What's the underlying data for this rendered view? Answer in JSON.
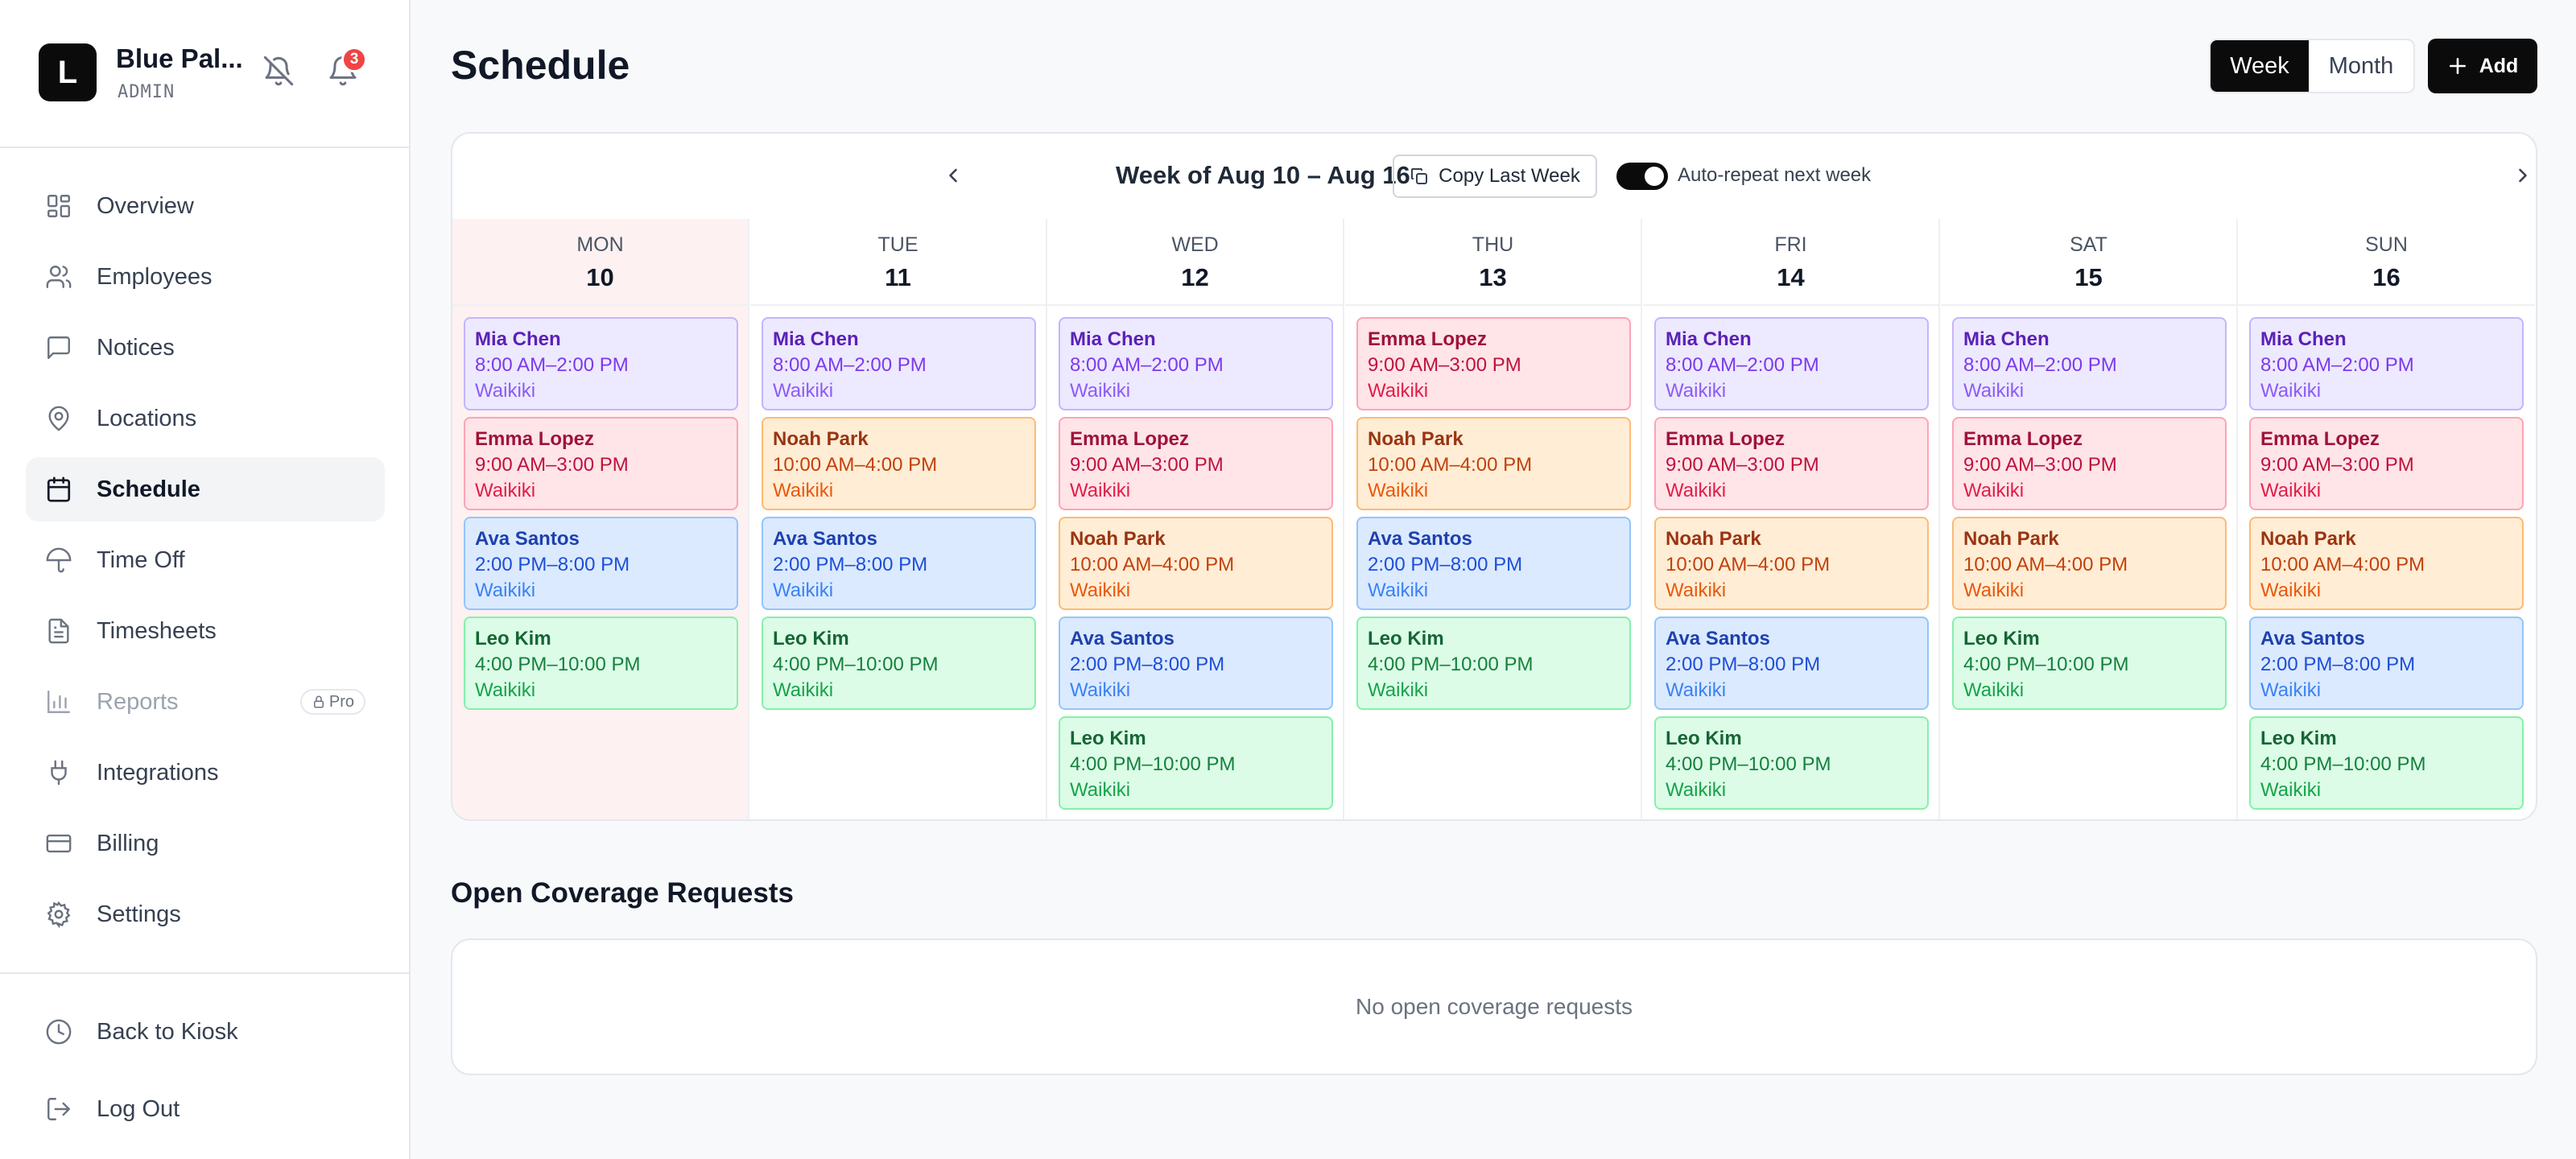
{
  "sidebar": {
    "brand_initial": "L",
    "brand_name": "Blue Pal...",
    "brand_role": "ADMIN",
    "notification_count": "3",
    "nav": [
      {
        "label": "Overview",
        "icon": "grid-icon"
      },
      {
        "label": "Employees",
        "icon": "users-icon"
      },
      {
        "label": "Notices",
        "icon": "message-icon"
      },
      {
        "label": "Locations",
        "icon": "map-pin-icon"
      },
      {
        "label": "Schedule",
        "icon": "calendar-icon",
        "active": true
      },
      {
        "label": "Time Off",
        "icon": "umbrella-icon"
      },
      {
        "label": "Timesheets",
        "icon": "document-icon"
      },
      {
        "label": "Reports",
        "icon": "bar-chart-icon",
        "disabled": true,
        "badge": "Pro"
      },
      {
        "label": "Integrations",
        "icon": "plug-icon"
      },
      {
        "label": "Billing",
        "icon": "credit-card-icon"
      },
      {
        "label": "Settings",
        "icon": "gear-icon"
      }
    ],
    "footer": [
      {
        "label": "Back to Kiosk",
        "icon": "clock-icon"
      },
      {
        "label": "Log Out",
        "icon": "logout-icon"
      }
    ]
  },
  "header": {
    "title": "Schedule",
    "view_week": "Week",
    "view_month": "Month",
    "add_label": "Add"
  },
  "week_bar": {
    "label": "Week of Aug 10 – Aug 16",
    "copy_label": "Copy Last Week",
    "auto_repeat_label": "Auto-repeat next week",
    "auto_repeat_on": true
  },
  "days": [
    {
      "name": "MON",
      "num": "10",
      "today": true,
      "shifts": [
        {
          "name": "Mia Chen",
          "time": "8:00 AM–2:00 PM",
          "location": "Waikiki",
          "color": "purple"
        },
        {
          "name": "Emma Lopez",
          "time": "9:00 AM–3:00 PM",
          "location": "Waikiki",
          "color": "pink"
        },
        {
          "name": "Ava Santos",
          "time": "2:00 PM–8:00 PM",
          "location": "Waikiki",
          "color": "blue"
        },
        {
          "name": "Leo Kim",
          "time": "4:00 PM–10:00 PM",
          "location": "Waikiki",
          "color": "green"
        }
      ]
    },
    {
      "name": "TUE",
      "num": "11",
      "shifts": [
        {
          "name": "Mia Chen",
          "time": "8:00 AM–2:00 PM",
          "location": "Waikiki",
          "color": "purple"
        },
        {
          "name": "Noah Park",
          "time": "10:00 AM–4:00 PM",
          "location": "Waikiki",
          "color": "orange"
        },
        {
          "name": "Ava Santos",
          "time": "2:00 PM–8:00 PM",
          "location": "Waikiki",
          "color": "blue"
        },
        {
          "name": "Leo Kim",
          "time": "4:00 PM–10:00 PM",
          "location": "Waikiki",
          "color": "green"
        }
      ]
    },
    {
      "name": "WED",
      "num": "12",
      "shifts": [
        {
          "name": "Mia Chen",
          "time": "8:00 AM–2:00 PM",
          "location": "Waikiki",
          "color": "purple"
        },
        {
          "name": "Emma Lopez",
          "time": "9:00 AM–3:00 PM",
          "location": "Waikiki",
          "color": "pink"
        },
        {
          "name": "Noah Park",
          "time": "10:00 AM–4:00 PM",
          "location": "Waikiki",
          "color": "orange"
        },
        {
          "name": "Ava Santos",
          "time": "2:00 PM–8:00 PM",
          "location": "Waikiki",
          "color": "blue"
        },
        {
          "name": "Leo Kim",
          "time": "4:00 PM–10:00 PM",
          "location": "Waikiki",
          "color": "green"
        }
      ]
    },
    {
      "name": "THU",
      "num": "13",
      "shifts": [
        {
          "name": "Emma Lopez",
          "time": "9:00 AM–3:00 PM",
          "location": "Waikiki",
          "color": "pink"
        },
        {
          "name": "Noah Park",
          "time": "10:00 AM–4:00 PM",
          "location": "Waikiki",
          "color": "orange"
        },
        {
          "name": "Ava Santos",
          "time": "2:00 PM–8:00 PM",
          "location": "Waikiki",
          "color": "blue"
        },
        {
          "name": "Leo Kim",
          "time": "4:00 PM–10:00 PM",
          "location": "Waikiki",
          "color": "green"
        }
      ]
    },
    {
      "name": "FRI",
      "num": "14",
      "shifts": [
        {
          "name": "Mia Chen",
          "time": "8:00 AM–2:00 PM",
          "location": "Waikiki",
          "color": "purple"
        },
        {
          "name": "Emma Lopez",
          "time": "9:00 AM–3:00 PM",
          "location": "Waikiki",
          "color": "pink"
        },
        {
          "name": "Noah Park",
          "time": "10:00 AM–4:00 PM",
          "location": "Waikiki",
          "color": "orange"
        },
        {
          "name": "Ava Santos",
          "time": "2:00 PM–8:00 PM",
          "location": "Waikiki",
          "color": "blue"
        },
        {
          "name": "Leo Kim",
          "time": "4:00 PM–10:00 PM",
          "location": "Waikiki",
          "color": "green"
        }
      ]
    },
    {
      "name": "SAT",
      "num": "15",
      "shifts": [
        {
          "name": "Mia Chen",
          "time": "8:00 AM–2:00 PM",
          "location": "Waikiki",
          "color": "purple"
        },
        {
          "name": "Emma Lopez",
          "time": "9:00 AM–3:00 PM",
          "location": "Waikiki",
          "color": "pink"
        },
        {
          "name": "Noah Park",
          "time": "10:00 AM–4:00 PM",
          "location": "Waikiki",
          "color": "orange"
        },
        {
          "name": "Leo Kim",
          "time": "4:00 PM–10:00 PM",
          "location": "Waikiki",
          "color": "green"
        }
      ]
    },
    {
      "name": "SUN",
      "num": "16",
      "shifts": [
        {
          "name": "Mia Chen",
          "time": "8:00 AM–2:00 PM",
          "location": "Waikiki",
          "color": "purple"
        },
        {
          "name": "Emma Lopez",
          "time": "9:00 AM–3:00 PM",
          "location": "Waikiki",
          "color": "pink"
        },
        {
          "name": "Noah Park",
          "time": "10:00 AM–4:00 PM",
          "location": "Waikiki",
          "color": "orange"
        },
        {
          "name": "Ava Santos",
          "time": "2:00 PM–8:00 PM",
          "location": "Waikiki",
          "color": "blue"
        },
        {
          "name": "Leo Kim",
          "time": "4:00 PM–10:00 PM",
          "location": "Waikiki",
          "color": "green"
        }
      ]
    }
  ],
  "coverage": {
    "title": "Open Coverage Requests",
    "empty_text": "No open coverage requests"
  },
  "colors": {
    "accent": "#0b0b0c",
    "today_bg": "#fdf1f1",
    "badge": "#ef4444"
  }
}
